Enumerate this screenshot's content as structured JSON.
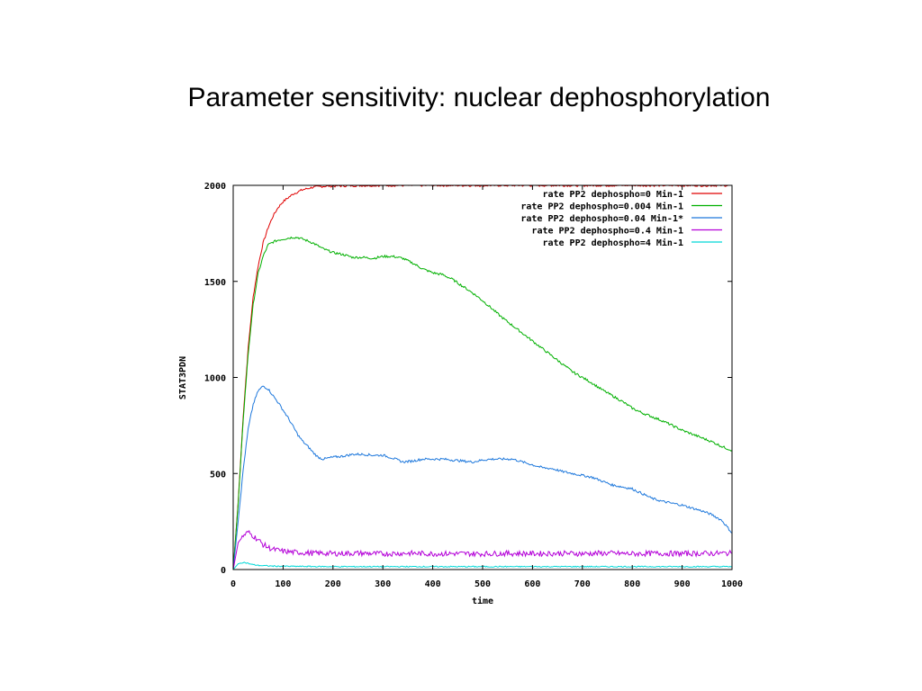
{
  "slide": {
    "title": "Parameter sensitivity: nuclear dephosphorylation"
  },
  "chart_data": {
    "type": "line",
    "title": "Parameter sensitivity: nuclear dephosphorylation",
    "xlabel": "time",
    "ylabel": "STAT3PDN",
    "xlim": [
      0,
      1000
    ],
    "ylim": [
      0,
      2000
    ],
    "xticks": [
      0,
      100,
      200,
      300,
      400,
      500,
      600,
      700,
      800,
      900,
      1000
    ],
    "yticks": [
      0,
      500,
      1000,
      1500,
      2000
    ],
    "grid": false,
    "legend_position": "top-right",
    "series": [
      {
        "name": "rate PP2 dephospho=0 Min-1",
        "color": "#e00000",
        "x": [
          0,
          10,
          20,
          30,
          40,
          50,
          60,
          70,
          80,
          90,
          100,
          120,
          140,
          160,
          180,
          200,
          250,
          300,
          400,
          500,
          600,
          700,
          800,
          900,
          1000
        ],
        "y": [
          0,
          350,
          800,
          1150,
          1420,
          1580,
          1700,
          1780,
          1840,
          1885,
          1915,
          1955,
          1978,
          1990,
          1995,
          1997,
          1999,
          2000,
          2000,
          2000,
          2000,
          2000,
          2000,
          2000,
          2000
        ]
      },
      {
        "name": "rate PP2 dephospho=0.004 Min-1",
        "color": "#00b000",
        "x": [
          0,
          10,
          20,
          30,
          40,
          50,
          60,
          70,
          80,
          90,
          100,
          110,
          120,
          130,
          140,
          160,
          180,
          200,
          220,
          240,
          260,
          280,
          300,
          320,
          340,
          360,
          380,
          400,
          420,
          440,
          460,
          480,
          500,
          520,
          540,
          560,
          580,
          600,
          620,
          640,
          660,
          680,
          700,
          720,
          740,
          760,
          780,
          800,
          820,
          840,
          860,
          880,
          900,
          920,
          940,
          960,
          980,
          1000
        ],
        "y": [
          0,
          340,
          780,
          1120,
          1380,
          1540,
          1630,
          1690,
          1705,
          1715,
          1720,
          1725,
          1730,
          1728,
          1720,
          1700,
          1670,
          1650,
          1640,
          1625,
          1625,
          1620,
          1630,
          1630,
          1620,
          1595,
          1565,
          1545,
          1535,
          1510,
          1475,
          1440,
          1400,
          1355,
          1310,
          1270,
          1230,
          1190,
          1150,
          1110,
          1070,
          1030,
          1000,
          970,
          935,
          905,
          875,
          840,
          815,
          795,
          775,
          750,
          725,
          705,
          685,
          665,
          640,
          620
        ]
      },
      {
        "name": "rate PP2 dephospho=0.04 Min-1*",
        "color": "#1e78dc",
        "x": [
          0,
          10,
          20,
          30,
          40,
          50,
          60,
          70,
          80,
          90,
          100,
          110,
          120,
          130,
          140,
          150,
          160,
          170,
          180,
          200,
          220,
          240,
          260,
          280,
          300,
          320,
          340,
          360,
          380,
          400,
          420,
          440,
          460,
          480,
          500,
          520,
          540,
          560,
          580,
          600,
          620,
          640,
          660,
          680,
          700,
          720,
          740,
          760,
          780,
          800,
          820,
          840,
          860,
          880,
          900,
          920,
          940,
          960,
          980,
          1000
        ],
        "y": [
          0,
          250,
          520,
          730,
          860,
          930,
          955,
          940,
          905,
          870,
          830,
          790,
          745,
          700,
          665,
          640,
          610,
          585,
          575,
          585,
          590,
          600,
          600,
          595,
          595,
          580,
          560,
          565,
          575,
          575,
          575,
          570,
          565,
          560,
          570,
          575,
          575,
          575,
          560,
          545,
          530,
          525,
          510,
          500,
          490,
          480,
          460,
          440,
          430,
          420,
          395,
          370,
          355,
          345,
          335,
          320,
          305,
          285,
          255,
          190
        ]
      },
      {
        "name": "rate PP2 dephospho=0.4 Min-1",
        "color": "#b400d8",
        "x": [
          0,
          10,
          20,
          30,
          40,
          50,
          60,
          70,
          80,
          90,
          100,
          120,
          140,
          160,
          180,
          200,
          250,
          300,
          350,
          400,
          450,
          500,
          550,
          600,
          650,
          700,
          750,
          800,
          850,
          900,
          950,
          1000
        ],
        "y": [
          0,
          140,
          175,
          195,
          175,
          155,
          130,
          115,
          105,
          100,
          95,
          90,
          88,
          85,
          85,
          83,
          85,
          82,
          85,
          82,
          83,
          82,
          84,
          83,
          84,
          83,
          85,
          82,
          84,
          83,
          84,
          85
        ]
      },
      {
        "name": "rate PP2 dephospho=4 Min-1",
        "color": "#00d8d8",
        "x": [
          0,
          10,
          20,
          30,
          40,
          50,
          60,
          70,
          80,
          100,
          150,
          200,
          300,
          400,
          500,
          600,
          700,
          800,
          900,
          1000
        ],
        "y": [
          0,
          30,
          38,
          32,
          25,
          22,
          20,
          19,
          18,
          17,
          16,
          15,
          15,
          15,
          15,
          15,
          15,
          15,
          15,
          15
        ]
      }
    ]
  }
}
